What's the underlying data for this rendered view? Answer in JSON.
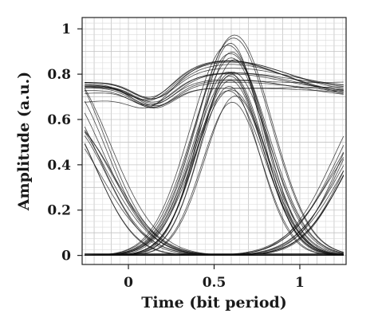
{
  "chart_data": {
    "type": "line",
    "chart_kind": "eye-diagram",
    "xlabel": "Time (bit period)",
    "ylabel": "Amplitude (a.u.)",
    "xlim": [
      -0.27,
      1.27
    ],
    "ylim": [
      -0.04,
      1.05
    ],
    "x_ticks": [
      0,
      0.5,
      1
    ],
    "x_tick_labels": [
      "0",
      "0.5",
      "1"
    ],
    "y_ticks": [
      0,
      0.2,
      0.4,
      0.6,
      0.8,
      1
    ],
    "y_tick_labels": [
      "0",
      "0.2",
      "0.4",
      "0.6",
      "0.8",
      "1"
    ],
    "grid": true,
    "line_color": "#111111",
    "peak_center_x": 0.6,
    "series": [
      {
        "pattern": "one-to-one",
        "level_start": 0.72,
        "level_mid": 0.8,
        "level_end": 0.73,
        "traces": 14
      },
      {
        "pattern": "zero-one-zero",
        "peak_min": 0.65,
        "peak_max": 1.0,
        "traces": 18
      },
      {
        "pattern": "one-to-zero",
        "start_min": 0.58,
        "start_max": 0.85,
        "traces": 12
      },
      {
        "pattern": "zero-to-one",
        "end_min": 0.55,
        "end_max": 0.74,
        "traces": 12
      },
      {
        "pattern": "zero-to-zero",
        "level": 0.0,
        "traces": 6
      }
    ]
  }
}
